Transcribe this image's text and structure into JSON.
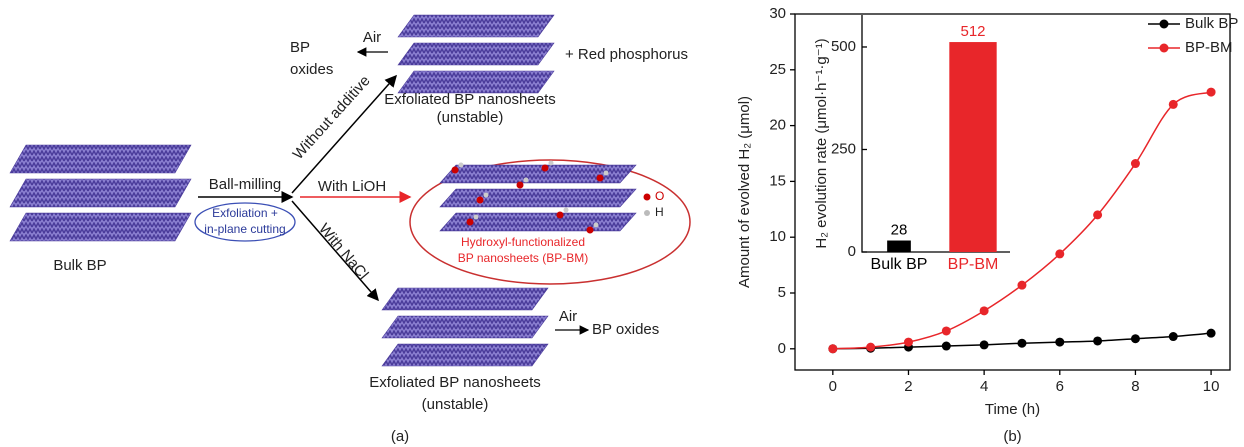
{
  "diagram": {
    "panel_label": "(a)",
    "bulk_label": "Bulk BP",
    "ball_milling": "Ball-milling",
    "ellipse_text": [
      "Exfoliation +",
      "in-plane cutting"
    ],
    "without_additive": "Without additive",
    "with_lioh": "With LiOH",
    "with_nacl": "With NaCl",
    "top": {
      "air": "Air",
      "oxides": [
        "BP",
        "oxides"
      ],
      "red_p": "+ Red phosphorus",
      "product": [
        "Exfoliated BP nanosheets",
        "(unstable)"
      ]
    },
    "middle": {
      "product": [
        "Hydroxyl-functionalized",
        "BP nanosheets (BP-BM)"
      ],
      "legend": [
        "O",
        "H"
      ]
    },
    "bottom": {
      "air": "Air",
      "oxides": "BP oxides",
      "product": [
        "Exfoliated BP nanosheets",
        "(unstable)"
      ]
    }
  },
  "chart_data": [
    {
      "type": "line",
      "panel_label": "(b)",
      "x_label": "Time (h)",
      "y_label": "Amount of evolved H₂ (μmol)",
      "x": [
        0,
        1,
        2,
        3,
        4,
        5,
        6,
        7,
        8,
        9,
        10
      ],
      "series": [
        {
          "name": "Bulk BP",
          "color": "#000000",
          "values": [
            0,
            0.05,
            0.15,
            0.25,
            0.35,
            0.5,
            0.6,
            0.7,
            0.9,
            1.1,
            1.4
          ]
        },
        {
          "name": "BP-BM",
          "color": "#e8262a",
          "values": [
            0,
            0.15,
            0.6,
            1.6,
            3.4,
            5.7,
            8.5,
            12.0,
            16.6,
            21.9,
            23.0
          ]
        }
      ],
      "xlim": [
        -1,
        10.5
      ],
      "ylim": [
        -1.9,
        30
      ],
      "xticks": [
        0,
        2,
        4,
        6,
        8,
        10
      ],
      "yticks": [
        0,
        5,
        10,
        15,
        20,
        25,
        30
      ],
      "legend": "upper right"
    },
    {
      "type": "bar",
      "y_label": "H₂ evolution rate (μmol·h⁻¹·g⁻¹)",
      "categories": [
        "Bulk BP",
        "BP-BM"
      ],
      "values": [
        28,
        512
      ],
      "colors": [
        "#000000",
        "#e8262a"
      ],
      "ylim": [
        0,
        578
      ],
      "yticks": [
        0,
        250,
        500
      ]
    }
  ]
}
